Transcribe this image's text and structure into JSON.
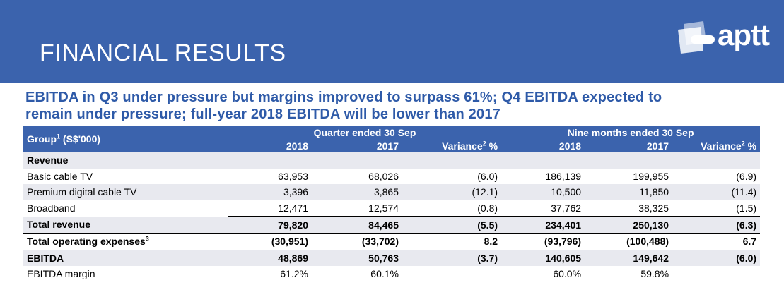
{
  "header": {
    "title": "FINANCIAL RESULTS",
    "logo_text": "aptt",
    "banner_color": "#3b63ad"
  },
  "headline": {
    "line1": "EBITDA in Q3 under pressure but margins improved to surpass 61%; Q4 EBITDA expected to",
    "line2": "remain under pressure; full-year 2018 EBITDA will be lower than 2017"
  },
  "table": {
    "group_label": "Group",
    "group_sup": "1",
    "group_unit": " (S$'000)",
    "quarter_header": "Quarter ended 30 Sep",
    "nine_header": "Nine months ended 30 Sep",
    "col_2018": "2018",
    "col_2017": "2017",
    "variance_label": "Variance",
    "variance_sup": "2",
    "variance_unit": " %",
    "section_revenue": "Revenue",
    "rows": [
      {
        "label": "Basic cable TV",
        "sup": "",
        "q2018": "63,953",
        "q2017": "68,026",
        "qvar": "(6.0)",
        "n2018": "186,139",
        "n2017": "199,955",
        "nvar": "(6.9)"
      },
      {
        "label": "Premium digital cable TV",
        "sup": "",
        "q2018": "3,396",
        "q2017": "3,865",
        "qvar": "(12.1)",
        "n2018": "10,500",
        "n2017": "11,850",
        "nvar": "(11.4)"
      },
      {
        "label": "Broadband",
        "sup": "",
        "q2018": "12,471",
        "q2017": "12,574",
        "qvar": "(0.8)",
        "n2018": "37,762",
        "n2017": "38,325",
        "nvar": "(1.5)"
      },
      {
        "label": "Total revenue",
        "sup": "",
        "q2018": "79,820",
        "q2017": "84,465",
        "qvar": "(5.5)",
        "n2018": "234,401",
        "n2017": "250,130",
        "nvar": "(6.3)"
      },
      {
        "label": "Total operating expenses",
        "sup": "3",
        "q2018": "(30,951)",
        "q2017": "(33,702)",
        "qvar": "8.2",
        "n2018": "(93,796)",
        "n2017": "(100,488)",
        "nvar": "6.7"
      },
      {
        "label": "EBITDA",
        "sup": "",
        "q2018": "48,869",
        "q2017": "50,763",
        "qvar": "(3.7)",
        "n2018": "140,605",
        "n2017": "149,642",
        "nvar": "(6.0)"
      },
      {
        "label": "EBITDA margin",
        "sup": "",
        "q2018": "61.2%",
        "q2017": "60.1%",
        "qvar": "",
        "n2018": "60.0%",
        "n2017": "59.8%",
        "nvar": ""
      }
    ]
  }
}
